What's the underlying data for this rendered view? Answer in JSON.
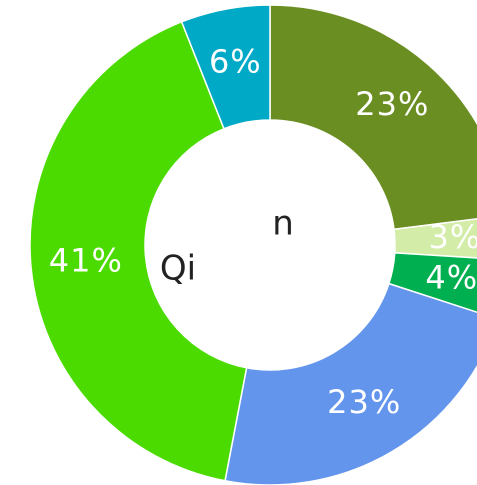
{
  "chart_data": {
    "type": "donut",
    "values": [
      23,
      3,
      4,
      23,
      41,
      6
    ],
    "value_labels": [
      "23%",
      "3%",
      "4%",
      "23%",
      "41%",
      "6%"
    ],
    "colors": [
      "#6b8e23",
      "#d3eda8",
      "#00b050",
      "#6495ed",
      "#4cdb00",
      "#00a9c6"
    ],
    "annotations": [
      "n",
      "Qi"
    ]
  }
}
